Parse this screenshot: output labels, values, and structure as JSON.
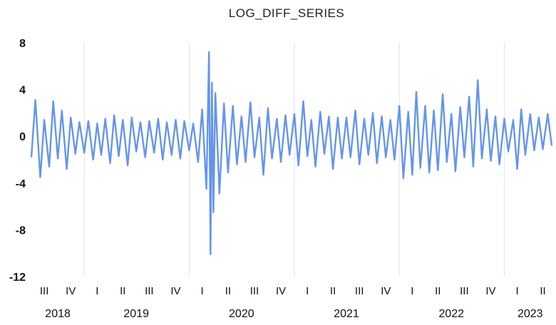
{
  "chart_data": {
    "type": "line",
    "title": "LOG_DIFF_SERIES",
    "xlabel": "",
    "ylabel": "",
    "ylim": [
      -12,
      8
    ],
    "yticks": [
      8,
      4,
      0,
      -4,
      -8,
      -12
    ],
    "xlim": [
      "2018-07-01",
      "2023-06-15"
    ],
    "grid": "vertical lines at each year start",
    "legend": "none",
    "line_color": "#6495ED",
    "year_ticks": [
      "2018",
      "2019",
      "2020",
      "2021",
      "2022",
      "2023"
    ],
    "quarter_ticks": [
      {
        "label": "III",
        "date": "2018-08-15"
      },
      {
        "label": "IV",
        "date": "2018-11-15"
      },
      {
        "label": "I",
        "date": "2019-02-15"
      },
      {
        "label": "II",
        "date": "2019-05-15"
      },
      {
        "label": "III",
        "date": "2019-08-15"
      },
      {
        "label": "IV",
        "date": "2019-11-15"
      },
      {
        "label": "I",
        "date": "2020-02-15"
      },
      {
        "label": "II",
        "date": "2020-05-15"
      },
      {
        "label": "III",
        "date": "2020-08-15"
      },
      {
        "label": "IV",
        "date": "2020-11-15"
      },
      {
        "label": "I",
        "date": "2021-02-15"
      },
      {
        "label": "II",
        "date": "2021-05-15"
      },
      {
        "label": "III",
        "date": "2021-08-15"
      },
      {
        "label": "IV",
        "date": "2021-11-15"
      },
      {
        "label": "I",
        "date": "2022-02-15"
      },
      {
        "label": "II",
        "date": "2022-05-15"
      },
      {
        "label": "III",
        "date": "2022-08-15"
      },
      {
        "label": "IV",
        "date": "2022-11-15"
      },
      {
        "label": "I",
        "date": "2023-02-15"
      },
      {
        "label": "II",
        "date": "2023-05-15"
      }
    ],
    "year_label_dates": {
      "2018": "2018-10-01",
      "2019": "2019-07-01",
      "2020": "2020-07-01",
      "2021": "2021-07-01",
      "2022": "2022-07-01",
      "2023": "2023-04-01"
    },
    "series": [
      {
        "x": [
          "2018-07-01",
          "2018-07-15",
          "2018-08-01",
          "2018-08-15",
          "2018-09-01",
          "2018-09-15",
          "2018-10-01",
          "2018-10-15",
          "2018-11-01",
          "2018-11-15",
          "2018-12-01",
          "2018-12-15",
          "2019-01-01",
          "2019-01-15",
          "2019-02-01",
          "2019-02-15",
          "2019-03-01",
          "2019-03-15",
          "2019-04-01",
          "2019-04-15",
          "2019-05-01",
          "2019-05-15",
          "2019-06-01",
          "2019-06-15",
          "2019-07-01",
          "2019-07-15",
          "2019-08-01",
          "2019-08-15",
          "2019-09-01",
          "2019-09-15",
          "2019-10-01",
          "2019-10-15",
          "2019-11-01",
          "2019-11-15",
          "2019-12-01",
          "2019-12-15",
          "2020-01-01",
          "2020-01-15",
          "2020-02-01",
          "2020-02-15",
          "2020-03-01",
          "2020-03-10",
          "2020-03-15",
          "2020-03-20",
          "2020-03-25",
          "2020-04-01",
          "2020-04-15",
          "2020-05-01",
          "2020-05-15",
          "2020-06-01",
          "2020-06-15",
          "2020-07-01",
          "2020-07-15",
          "2020-08-01",
          "2020-08-15",
          "2020-09-01",
          "2020-09-15",
          "2020-10-01",
          "2020-10-15",
          "2020-11-01",
          "2020-11-15",
          "2020-12-01",
          "2020-12-15",
          "2021-01-01",
          "2021-01-15",
          "2021-02-01",
          "2021-02-15",
          "2021-03-01",
          "2021-03-15",
          "2021-04-01",
          "2021-04-15",
          "2021-05-01",
          "2021-05-15",
          "2021-06-01",
          "2021-06-15",
          "2021-07-01",
          "2021-07-15",
          "2021-08-01",
          "2021-08-15",
          "2021-09-01",
          "2021-09-15",
          "2021-10-01",
          "2021-10-15",
          "2021-11-01",
          "2021-11-15",
          "2021-12-01",
          "2021-12-15",
          "2022-01-01",
          "2022-01-15",
          "2022-02-01",
          "2022-02-15",
          "2022-03-01",
          "2022-03-15",
          "2022-04-01",
          "2022-04-15",
          "2022-05-01",
          "2022-05-15",
          "2022-06-01",
          "2022-06-15",
          "2022-07-01",
          "2022-07-15",
          "2022-08-01",
          "2022-08-15",
          "2022-09-01",
          "2022-09-15",
          "2022-10-01",
          "2022-10-15",
          "2022-11-01",
          "2022-11-15",
          "2022-12-01",
          "2022-12-15",
          "2023-01-01",
          "2023-01-15",
          "2023-02-01",
          "2023-02-15",
          "2023-03-01",
          "2023-03-15",
          "2023-04-01",
          "2023-04-15",
          "2023-05-01",
          "2023-05-15",
          "2023-06-01",
          "2023-06-15"
        ],
        "y": [
          -1.8,
          3.1,
          -3.5,
          1.4,
          -2.6,
          3.0,
          -1.9,
          2.2,
          -2.8,
          1.6,
          -1.5,
          1.2,
          -1.4,
          1.3,
          -2.0,
          1.1,
          -1.6,
          1.5,
          -2.3,
          1.8,
          -1.7,
          1.4,
          -2.5,
          1.6,
          -1.3,
          1.2,
          -1.8,
          1.3,
          -1.4,
          1.5,
          -2.0,
          1.2,
          -1.6,
          1.4,
          -1.9,
          1.3,
          -1.2,
          1.1,
          -2.2,
          2.3,
          -4.5,
          7.2,
          -10.1,
          4.6,
          -6.5,
          3.7,
          -4.9,
          2.8,
          -3.1,
          2.6,
          -2.4,
          1.7,
          -2.2,
          2.9,
          -1.8,
          1.6,
          -3.3,
          2.4,
          -1.9,
          1.5,
          -2.2,
          1.8,
          -1.6,
          1.9,
          -2.5,
          3.0,
          -1.7,
          1.4,
          -2.6,
          2.1,
          -1.5,
          1.7,
          -2.8,
          1.6,
          -1.9,
          1.6,
          -1.8,
          2.2,
          -2.4,
          1.5,
          -1.6,
          2.0,
          -2.3,
          1.7,
          -1.8,
          1.4,
          -2.0,
          2.6,
          -3.6,
          2.1,
          -3.3,
          3.8,
          -2.7,
          2.6,
          -3.1,
          2.2,
          -2.9,
          3.6,
          -2.2,
          1.9,
          -3.0,
          2.5,
          -1.8,
          3.4,
          -2.6,
          4.8,
          -1.9,
          2.3,
          -2.1,
          1.7,
          -2.4,
          1.5,
          -1.3,
          1.4,
          -2.8,
          2.3,
          -1.6,
          1.9,
          -1.2,
          1.6,
          -1.1,
          1.9,
          -0.8
        ]
      }
    ]
  }
}
